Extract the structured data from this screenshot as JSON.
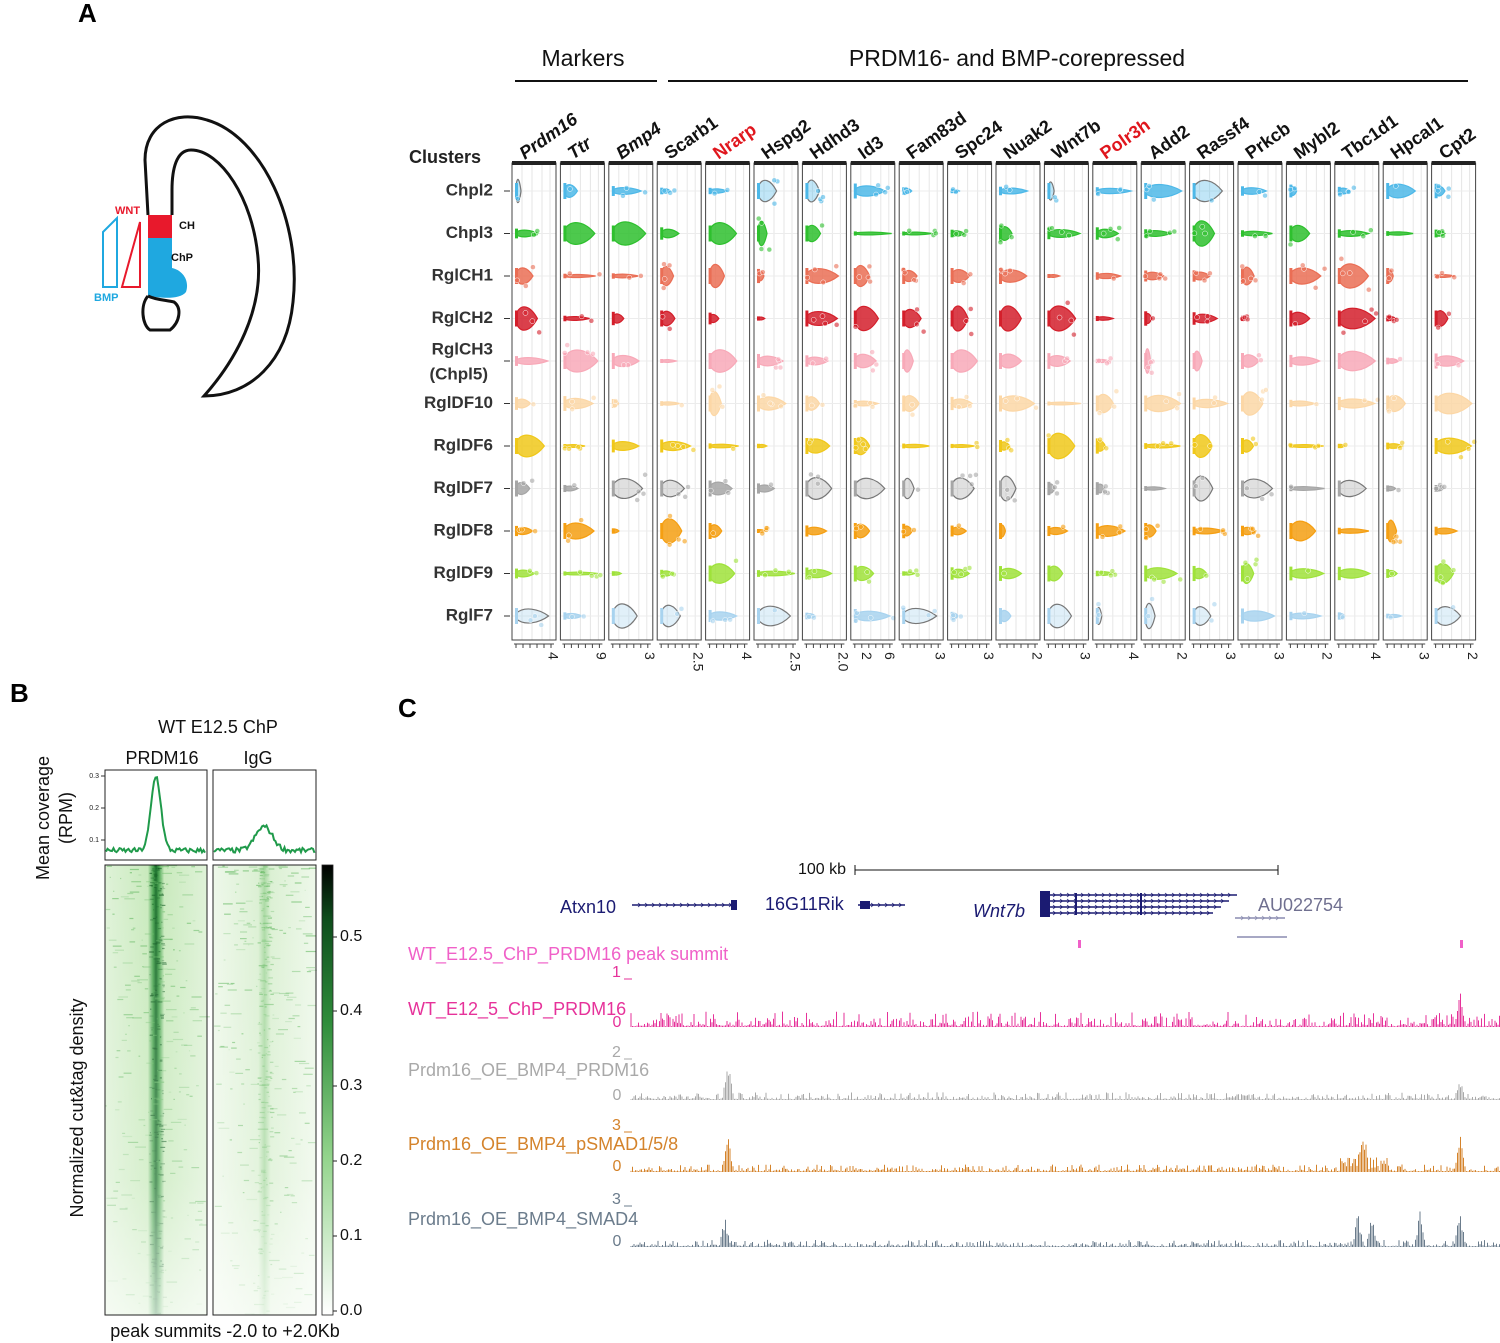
{
  "panel_a": {
    "label": "A",
    "diagram": {
      "wnt": "WNT",
      "ch": "CH",
      "chp": "ChP",
      "bmp": "BMP"
    },
    "headers": [
      "Markers",
      "PRDM16- and BMP-corepressed"
    ],
    "clusters_title": "Clusters",
    "clusters": [
      {
        "name": "Chpl2",
        "color": "#4db8e8"
      },
      {
        "name": "Chpl3",
        "color": "#2ec02e"
      },
      {
        "name": "RglCH1",
        "color": "#ea6e55"
      },
      {
        "name": "RglCH2",
        "color": "#d41f2b"
      },
      {
        "name": "RglCH3",
        "subname": "(Chpl5)",
        "color": "#f8a9b8"
      },
      {
        "name": "RglDF10",
        "color": "#fcd7a6"
      },
      {
        "name": "RglDF6",
        "color": "#f0c81a"
      },
      {
        "name": "RglDF7",
        "color": "#a6a6a6"
      },
      {
        "name": "RglDF8",
        "color": "#f59f12"
      },
      {
        "name": "RglDF9",
        "color": "#9fe23a"
      },
      {
        "name": "RglF7",
        "color": "#a8d3ef"
      }
    ],
    "genes": [
      {
        "name": "Prdm16",
        "style": "italic",
        "color": "#111111",
        "ticks": [
          "4"
        ]
      },
      {
        "name": "Ttr",
        "style": "italic",
        "color": "#111111",
        "ticks": [
          "9"
        ]
      },
      {
        "name": "Bmp4",
        "style": "italic",
        "color": "#111111",
        "ticks": [
          "3"
        ]
      },
      {
        "name": "Scarb1",
        "style": "normal",
        "color": "#111111",
        "ticks": [
          "2.5"
        ]
      },
      {
        "name": "Nrarp",
        "style": "normal",
        "color": "#e0161d",
        "ticks": [
          "4"
        ]
      },
      {
        "name": "Hspg2",
        "style": "normal",
        "color": "#111111",
        "ticks": [
          "2.5"
        ]
      },
      {
        "name": "Hdhd3",
        "style": "normal",
        "color": "#111111",
        "ticks": [
          "2.0"
        ]
      },
      {
        "name": "Id3",
        "style": "normal",
        "color": "#111111",
        "ticks": [
          "2",
          "6"
        ]
      },
      {
        "name": "Fam83d",
        "style": "normal",
        "color": "#111111",
        "ticks": [
          "3"
        ]
      },
      {
        "name": "Spc24",
        "style": "normal",
        "color": "#111111",
        "ticks": [
          "3"
        ]
      },
      {
        "name": "Nuak2",
        "style": "normal",
        "color": "#111111",
        "ticks": [
          "2"
        ]
      },
      {
        "name": "Wnt7b",
        "style": "normal",
        "color": "#111111",
        "ticks": [
          "3"
        ]
      },
      {
        "name": "Polr3h",
        "style": "normal",
        "color": "#e0161d",
        "ticks": [
          "4"
        ]
      },
      {
        "name": "Add2",
        "style": "normal",
        "color": "#111111",
        "ticks": [
          "2"
        ]
      },
      {
        "name": "Rassf4",
        "style": "normal",
        "color": "#111111",
        "ticks": [
          "3"
        ]
      },
      {
        "name": "Prkcb",
        "style": "normal",
        "color": "#111111",
        "ticks": [
          "3"
        ]
      },
      {
        "name": "Mybl2",
        "style": "normal",
        "color": "#111111",
        "ticks": [
          "2"
        ]
      },
      {
        "name": "Tbc1d1",
        "style": "normal",
        "color": "#111111",
        "ticks": [
          "4"
        ]
      },
      {
        "name": "Hpcal1",
        "style": "normal",
        "color": "#111111",
        "ticks": [
          "3"
        ]
      },
      {
        "name": "Cpt2",
        "style": "normal",
        "color": "#111111",
        "ticks": [
          "2"
        ]
      }
    ]
  },
  "panel_b": {
    "label": "B",
    "title": "WT E12.5 ChP",
    "columns": [
      "PRDM16",
      "IgG"
    ],
    "profile_ylabel": [
      "Mean coverage",
      "(RPM)"
    ],
    "profile_yticks": [
      "0.3",
      "0.2",
      "0.1"
    ],
    "heatmap_ylabel": "Normalized cut&tag density",
    "colorbar_ticks": [
      "0.5",
      "0.4",
      "0.3",
      "0.2",
      "0.1",
      "0.0"
    ],
    "xlabel": "peak summits -2.0 to +2.0Kb",
    "color": "#1f9a4a"
  },
  "panel_c": {
    "label": "C",
    "scale": "100 kb",
    "genes": [
      "Atxn10",
      "16G11Rik",
      "Wnt7b",
      "AU022754"
    ],
    "summit_track": "WT_E12.5_ChP_PRDM16 peak summit",
    "tracks": [
      {
        "name": "WT_E12_5_ChP_PRDM16",
        "max": "1",
        "min": "0",
        "color": "#e6329a"
      },
      {
        "name": "Prdm16_OE_BMP4_PRDM16",
        "max": "2",
        "min": "0",
        "color": "#a9a9a9"
      },
      {
        "name": "Prdm16_OE_BMP4_pSMAD1/5/8",
        "max": "3",
        "min": "0",
        "color": "#d4832b"
      },
      {
        "name": "Prdm16_OE_BMP4_SMAD4",
        "max": "3",
        "min": "0",
        "color": "#6b7c8c"
      }
    ]
  }
}
